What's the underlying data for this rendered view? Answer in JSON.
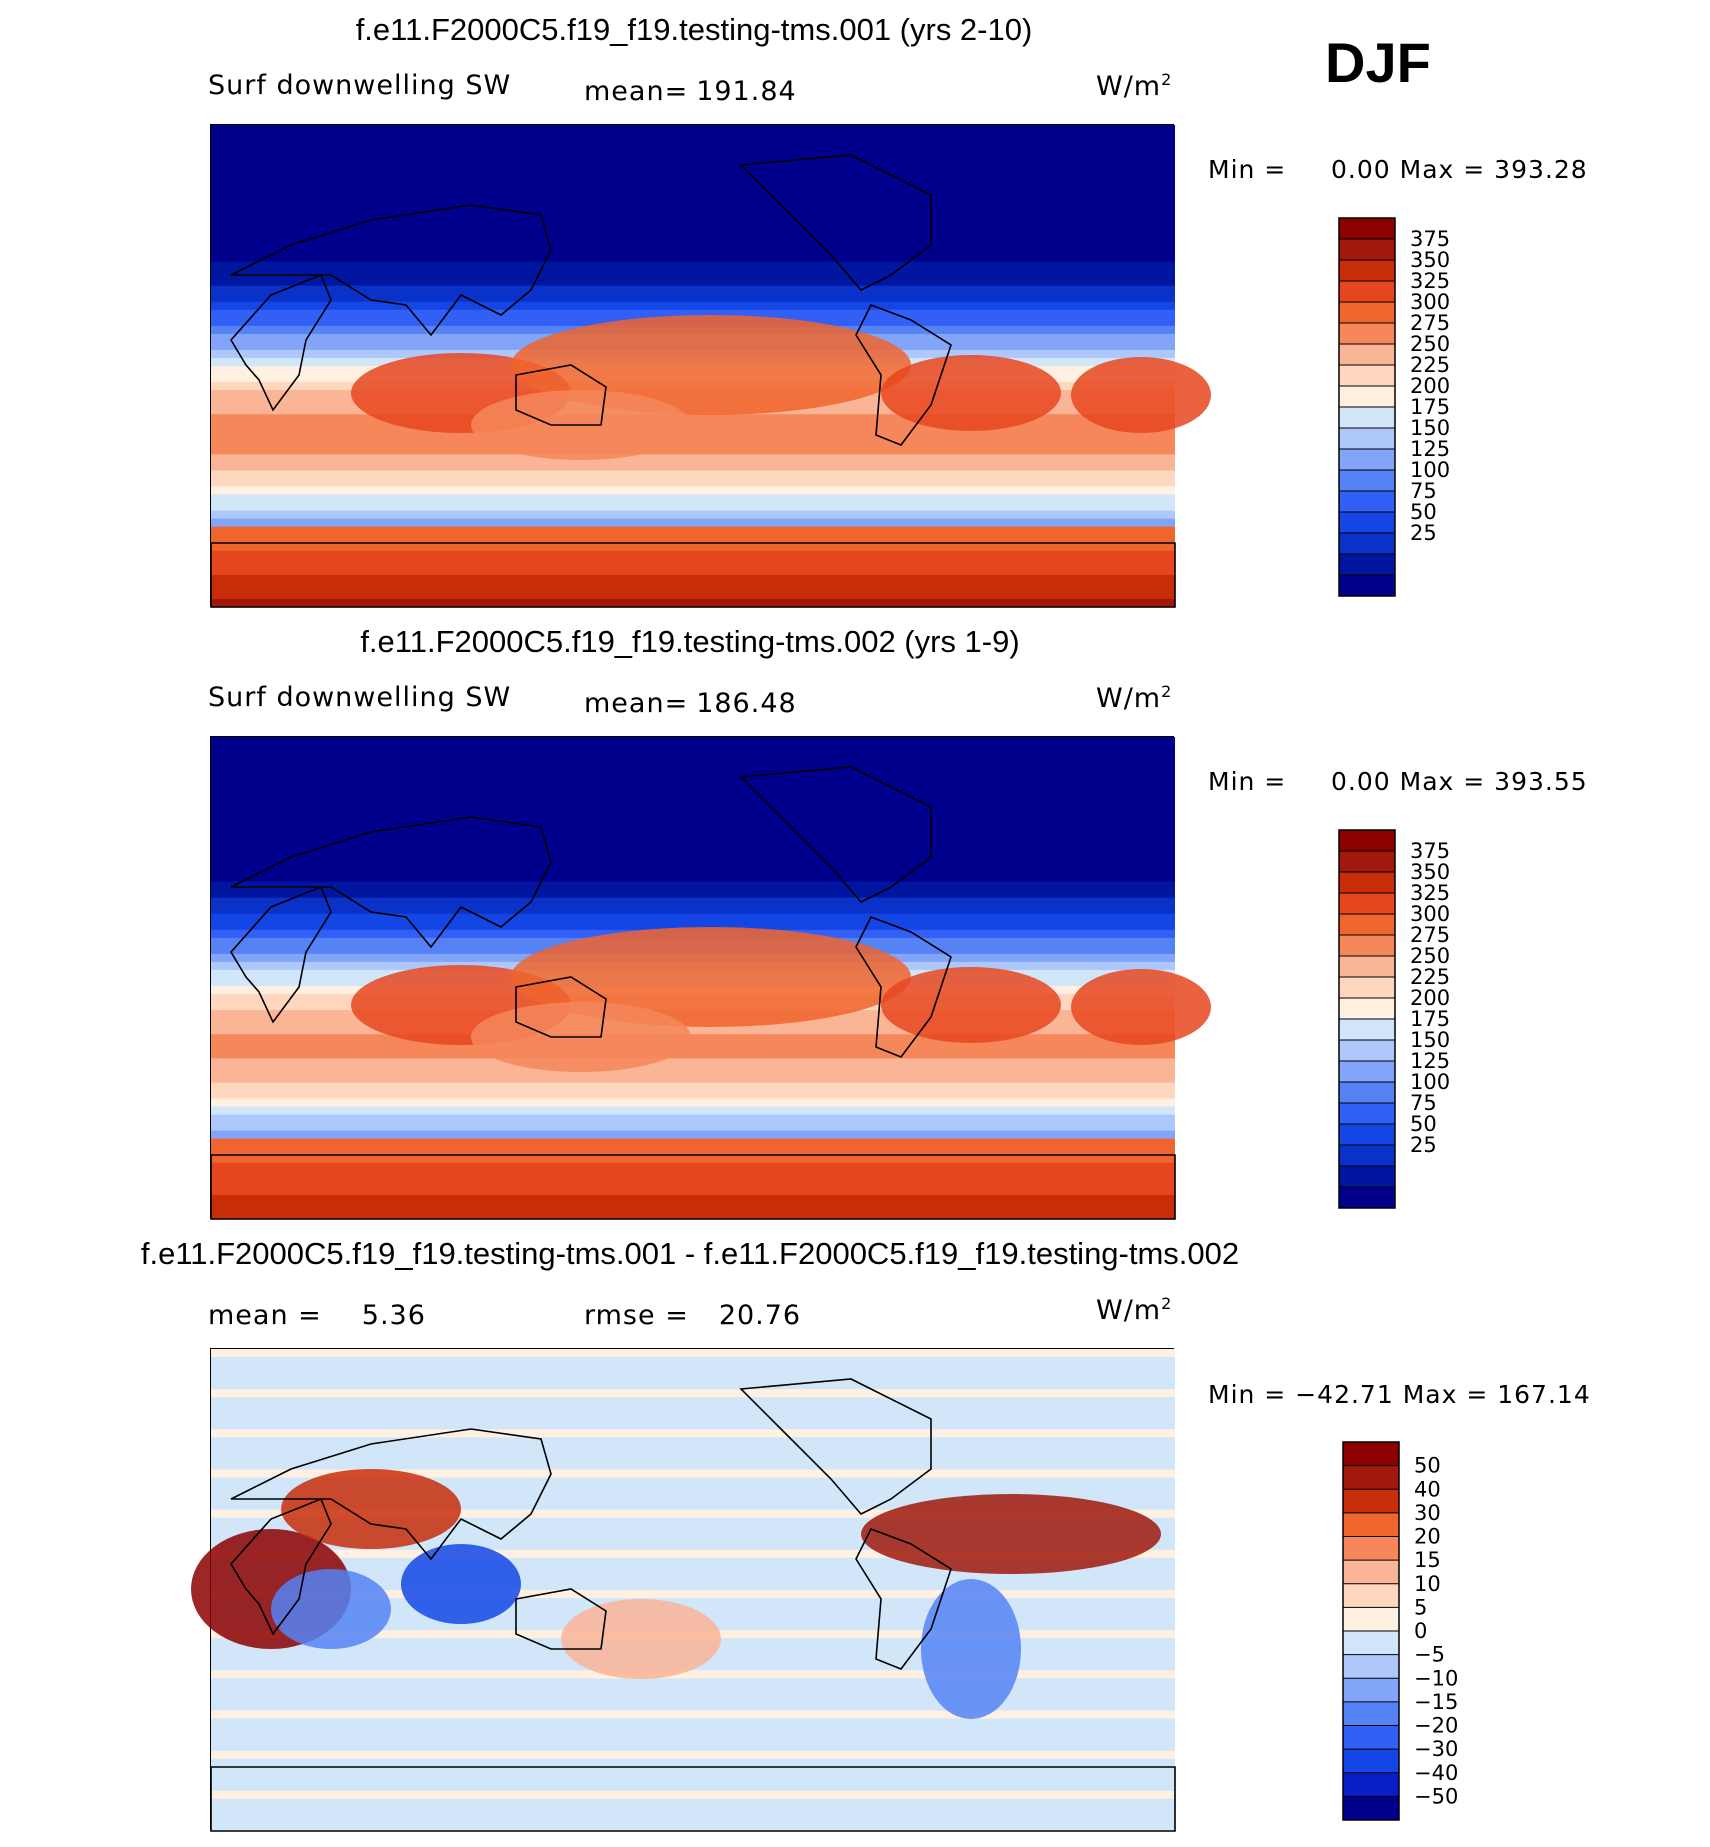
{
  "season": "DJF",
  "colors": {
    "seq": [
      "#00008c",
      "#0016a0",
      "#0a32c8",
      "#1446e6",
      "#325ff5",
      "#5582f5",
      "#82a5fa",
      "#afc8fc",
      "#d2e6fa",
      "#fff0e1",
      "#ffd7be",
      "#fab496",
      "#f5875a",
      "#f0642d",
      "#e6461e",
      "#c82d0a",
      "#a0190a",
      "#8c0000"
    ],
    "diff": [
      "#00008c",
      "#0a1ec8",
      "#1446e6",
      "#325ff5",
      "#5582f5",
      "#82a5fa",
      "#afc8fc",
      "#d2e6fa",
      "#fff0e1",
      "#ffd7be",
      "#fab496",
      "#f5875a",
      "#f0642d",
      "#c82d0a",
      "#a0190a",
      "#8c0000"
    ]
  },
  "panels": [
    {
      "title": "f.e11.F2000C5.f19_f19.testing-tms.001 (yrs 2-10)",
      "left_label": "Surf downwelling SW",
      "mid_label": "mean=",
      "mid_value": "191.84",
      "units": "W/m",
      "units_sup": "2",
      "min_label": "Min =",
      "min_value": "0.00",
      "max_label": "Max =",
      "max_value": "393.28"
    },
    {
      "title": "f.e11.F2000C5.f19_f19.testing-tms.002 (yrs 1-9)",
      "left_label": "Surf downwelling SW",
      "mid_label": "mean=",
      "mid_value": "186.48",
      "units": "W/m",
      "units_sup": "2",
      "min_label": "Min =",
      "min_value": "0.00",
      "max_label": "Max =",
      "max_value": "393.55"
    },
    {
      "title": "f.e11.F2000C5.f19_f19.testing-tms.001 - f.e11.F2000C5.f19_f19.testing-tms.002",
      "left_label": "mean =",
      "left_value": "5.36",
      "mid_label": "rmse =",
      "mid_value": "20.76",
      "units": "W/m",
      "units_sup": "2",
      "min_label": "Min =",
      "min_value": "−42.71",
      "max_label": "Max =",
      "max_value": "167.14"
    }
  ],
  "chart_data": [
    {
      "type": "heatmap",
      "title": "f.e11.F2000C5.f19_f19.testing-tms.001 (yrs 2-10)",
      "variable": "Surf downwelling SW",
      "units": "W/m2",
      "mean": 191.84,
      "min": 0.0,
      "max": 393.28,
      "colorbar_levels": [
        375,
        350,
        325,
        300,
        275,
        250,
        225,
        200,
        175,
        150,
        125,
        100,
        75,
        50,
        25
      ]
    },
    {
      "type": "heatmap",
      "title": "f.e11.F2000C5.f19_f19.testing-tms.002 (yrs 1-9)",
      "variable": "Surf downwelling SW",
      "units": "W/m2",
      "mean": 186.48,
      "min": 0.0,
      "max": 393.55,
      "colorbar_levels": [
        375,
        350,
        325,
        300,
        275,
        250,
        225,
        200,
        175,
        150,
        125,
        100,
        75,
        50,
        25
      ]
    },
    {
      "type": "heatmap",
      "title": "f.e11.F2000C5.f19_f19.testing-tms.001 - f.e11.F2000C5.f19_f19.testing-tms.002",
      "units": "W/m2",
      "mean": 5.36,
      "rmse": 20.76,
      "min": -42.71,
      "max": 167.14,
      "colorbar_levels": [
        "50",
        "40",
        "30",
        "20",
        "15",
        "10",
        "5",
        "0",
        "−5",
        "−10",
        "−15",
        "−20",
        "−30",
        "−40",
        "−50"
      ]
    }
  ]
}
